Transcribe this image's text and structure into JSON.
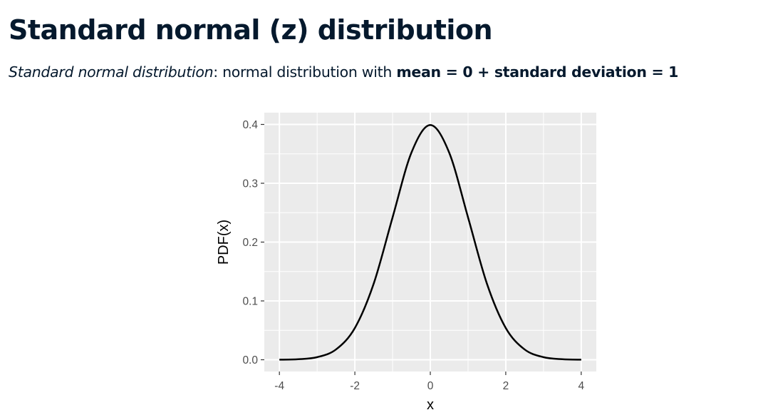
{
  "slide": {
    "title": "Standard normal (z) distribution",
    "subtitle": {
      "term": "Standard normal distribution",
      "colon": ":",
      "middle": " normal distribution with ",
      "emphasis": "mean = 0 + standard deviation = 1"
    }
  },
  "colors": {
    "text": "#05192d",
    "panel_background": "#ebebeb",
    "grid": "#ffffff",
    "curve": "#000000",
    "tick_text": "#4d4d4d"
  },
  "chart_data": {
    "type": "line",
    "title": "",
    "xlabel": "x",
    "ylabel": "PDF(x)",
    "xlim": [
      -4,
      4
    ],
    "ylim": [
      0,
      0.4
    ],
    "x_ticks": [
      "-4",
      "-2",
      "0",
      "2",
      "4"
    ],
    "y_ticks": [
      "0.0",
      "0.1",
      "0.2",
      "0.3",
      "0.4"
    ],
    "grid": true,
    "legend": "none",
    "series": [
      {
        "x": [
          -4,
          -3.5,
          -3,
          -2.5,
          -2,
          -1.5,
          -1,
          -0.5,
          0,
          0.5,
          1,
          1.5,
          2,
          2.5,
          3,
          3.5,
          4
        ],
        "values": [
          0.0001,
          0.0009,
          0.0044,
          0.0175,
          0.054,
          0.1295,
          0.242,
          0.3521,
          0.3989,
          0.3521,
          0.242,
          0.1295,
          0.054,
          0.0175,
          0.0044,
          0.0009,
          0.0001
        ]
      }
    ]
  }
}
